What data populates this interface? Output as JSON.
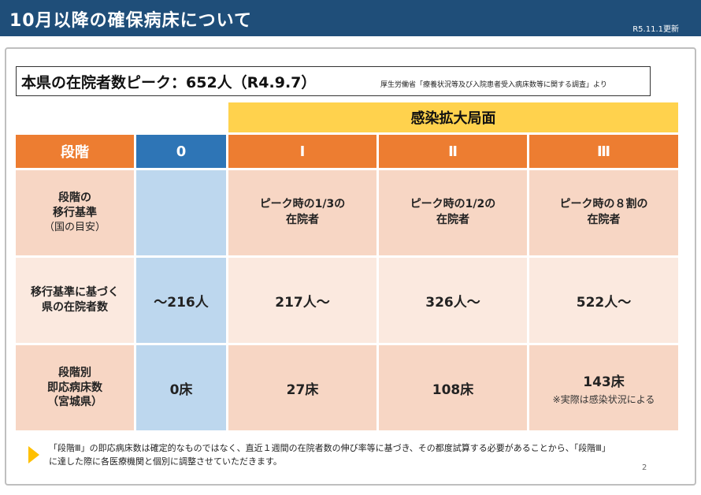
{
  "header": {
    "title": "10月以降の確保病床について",
    "updated": "R5.11.1更新"
  },
  "peak": {
    "main": "本県の在院者数ピーク：652人（R4.9.7）",
    "source": "厚生労働省「療養状況等及び入院患者受入病床数等に関する調査」より"
  },
  "table": {
    "expansion_label": "感染拡大局面",
    "headers": [
      "段階",
      "0",
      "Ⅰ",
      "Ⅱ",
      "Ⅲ"
    ],
    "rows": [
      {
        "label": [
          "段階の",
          "移行基準"
        ],
        "sublabel": "（国の目安）",
        "cells": [
          [
            ""
          ],
          [
            "ピーク時の1/3の",
            "在院者"
          ],
          [
            "ピーク時の1/2の",
            "在院者"
          ],
          [
            "ピーク時の８割の",
            "在院者"
          ]
        ]
      },
      {
        "label": [
          "移行基準に基づく",
          "県の在院者数"
        ],
        "cells": [
          "～216人",
          "217人～",
          "326人～",
          "522人～"
        ]
      },
      {
        "label": [
          "段階別",
          "即応病床数",
          "（宮城県）"
        ],
        "cells": [
          "0床",
          "27床",
          "108床",
          "143床"
        ],
        "note": "※実際は感染状況による"
      }
    ]
  },
  "footnote": {
    "line1": "「段階Ⅲ」の即応病床数は確定的なものではなく、直近１週間の在院者数の伸び率等に基づき、その都度試算する必要があることから、「段階Ⅲ」",
    "line2": "に達した際に各医療機関と個別に調整させていただきます。"
  },
  "page_number": "2",
  "colors": {
    "header_bg": "#1f4e79",
    "expansion_bg": "#ffd24d",
    "stage_header_orange": "#ed7d31",
    "stage0_blue": "#2e75b6",
    "stage0_cell": "#bdd7ee",
    "cell_peach": "#f7d6c4",
    "cell_light": "#fbe9df",
    "arrow": "#ffc000"
  }
}
